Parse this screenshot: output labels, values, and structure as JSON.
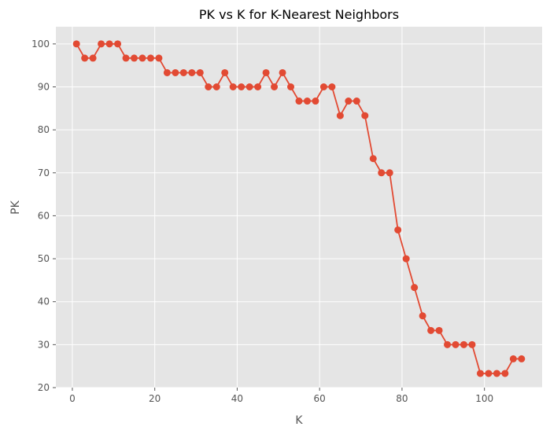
{
  "chart_data": {
    "type": "line",
    "title": "PK vs K for K-Nearest Neighbors",
    "xlabel": "K",
    "ylabel": "PK",
    "xlim": [
      -4,
      114
    ],
    "ylim": [
      20,
      104
    ],
    "xticks": [
      0,
      20,
      40,
      60,
      80,
      100
    ],
    "yticks": [
      20,
      30,
      40,
      50,
      60,
      70,
      80,
      90,
      100
    ],
    "grid": true,
    "colors": {
      "plot_background": "#e5e5e5",
      "grid": "#ffffff",
      "series": "#e24a33",
      "text": "#555555"
    },
    "series": [
      {
        "marker": "circle",
        "points": [
          {
            "x": 1,
            "y": 100
          },
          {
            "x": 3,
            "y": 96.7
          },
          {
            "x": 5,
            "y": 96.7
          },
          {
            "x": 7,
            "y": 100
          },
          {
            "x": 9,
            "y": 100
          },
          {
            "x": 11,
            "y": 100
          },
          {
            "x": 13,
            "y": 96.7
          },
          {
            "x": 15,
            "y": 96.7
          },
          {
            "x": 17,
            "y": 96.7
          },
          {
            "x": 19,
            "y": 96.7
          },
          {
            "x": 21,
            "y": 96.7
          },
          {
            "x": 23,
            "y": 93.3
          },
          {
            "x": 25,
            "y": 93.3
          },
          {
            "x": 27,
            "y": 93.3
          },
          {
            "x": 29,
            "y": 93.3
          },
          {
            "x": 31,
            "y": 93.3
          },
          {
            "x": 33,
            "y": 90
          },
          {
            "x": 35,
            "y": 90
          },
          {
            "x": 37,
            "y": 93.3
          },
          {
            "x": 39,
            "y": 90
          },
          {
            "x": 41,
            "y": 90
          },
          {
            "x": 43,
            "y": 90
          },
          {
            "x": 45,
            "y": 90
          },
          {
            "x": 47,
            "y": 93.3
          },
          {
            "x": 49,
            "y": 90
          },
          {
            "x": 51,
            "y": 93.3
          },
          {
            "x": 53,
            "y": 90
          },
          {
            "x": 55,
            "y": 86.7
          },
          {
            "x": 57,
            "y": 86.7
          },
          {
            "x": 59,
            "y": 86.7
          },
          {
            "x": 61,
            "y": 90
          },
          {
            "x": 63,
            "y": 90
          },
          {
            "x": 65,
            "y": 83.3
          },
          {
            "x": 67,
            "y": 86.7
          },
          {
            "x": 69,
            "y": 86.7
          },
          {
            "x": 71,
            "y": 83.3
          },
          {
            "x": 73,
            "y": 73.3
          },
          {
            "x": 75,
            "y": 70
          },
          {
            "x": 77,
            "y": 70
          },
          {
            "x": 79,
            "y": 56.7
          },
          {
            "x": 81,
            "y": 50
          },
          {
            "x": 83,
            "y": 43.3
          },
          {
            "x": 85,
            "y": 36.7
          },
          {
            "x": 87,
            "y": 33.3
          },
          {
            "x": 89,
            "y": 33.3
          },
          {
            "x": 91,
            "y": 30
          },
          {
            "x": 93,
            "y": 30
          },
          {
            "x": 95,
            "y": 30
          },
          {
            "x": 97,
            "y": 30
          },
          {
            "x": 99,
            "y": 23.3
          },
          {
            "x": 101,
            "y": 23.3
          },
          {
            "x": 103,
            "y": 23.3
          },
          {
            "x": 105,
            "y": 23.3
          },
          {
            "x": 107,
            "y": 26.7
          },
          {
            "x": 109,
            "y": 26.7
          }
        ]
      }
    ]
  }
}
